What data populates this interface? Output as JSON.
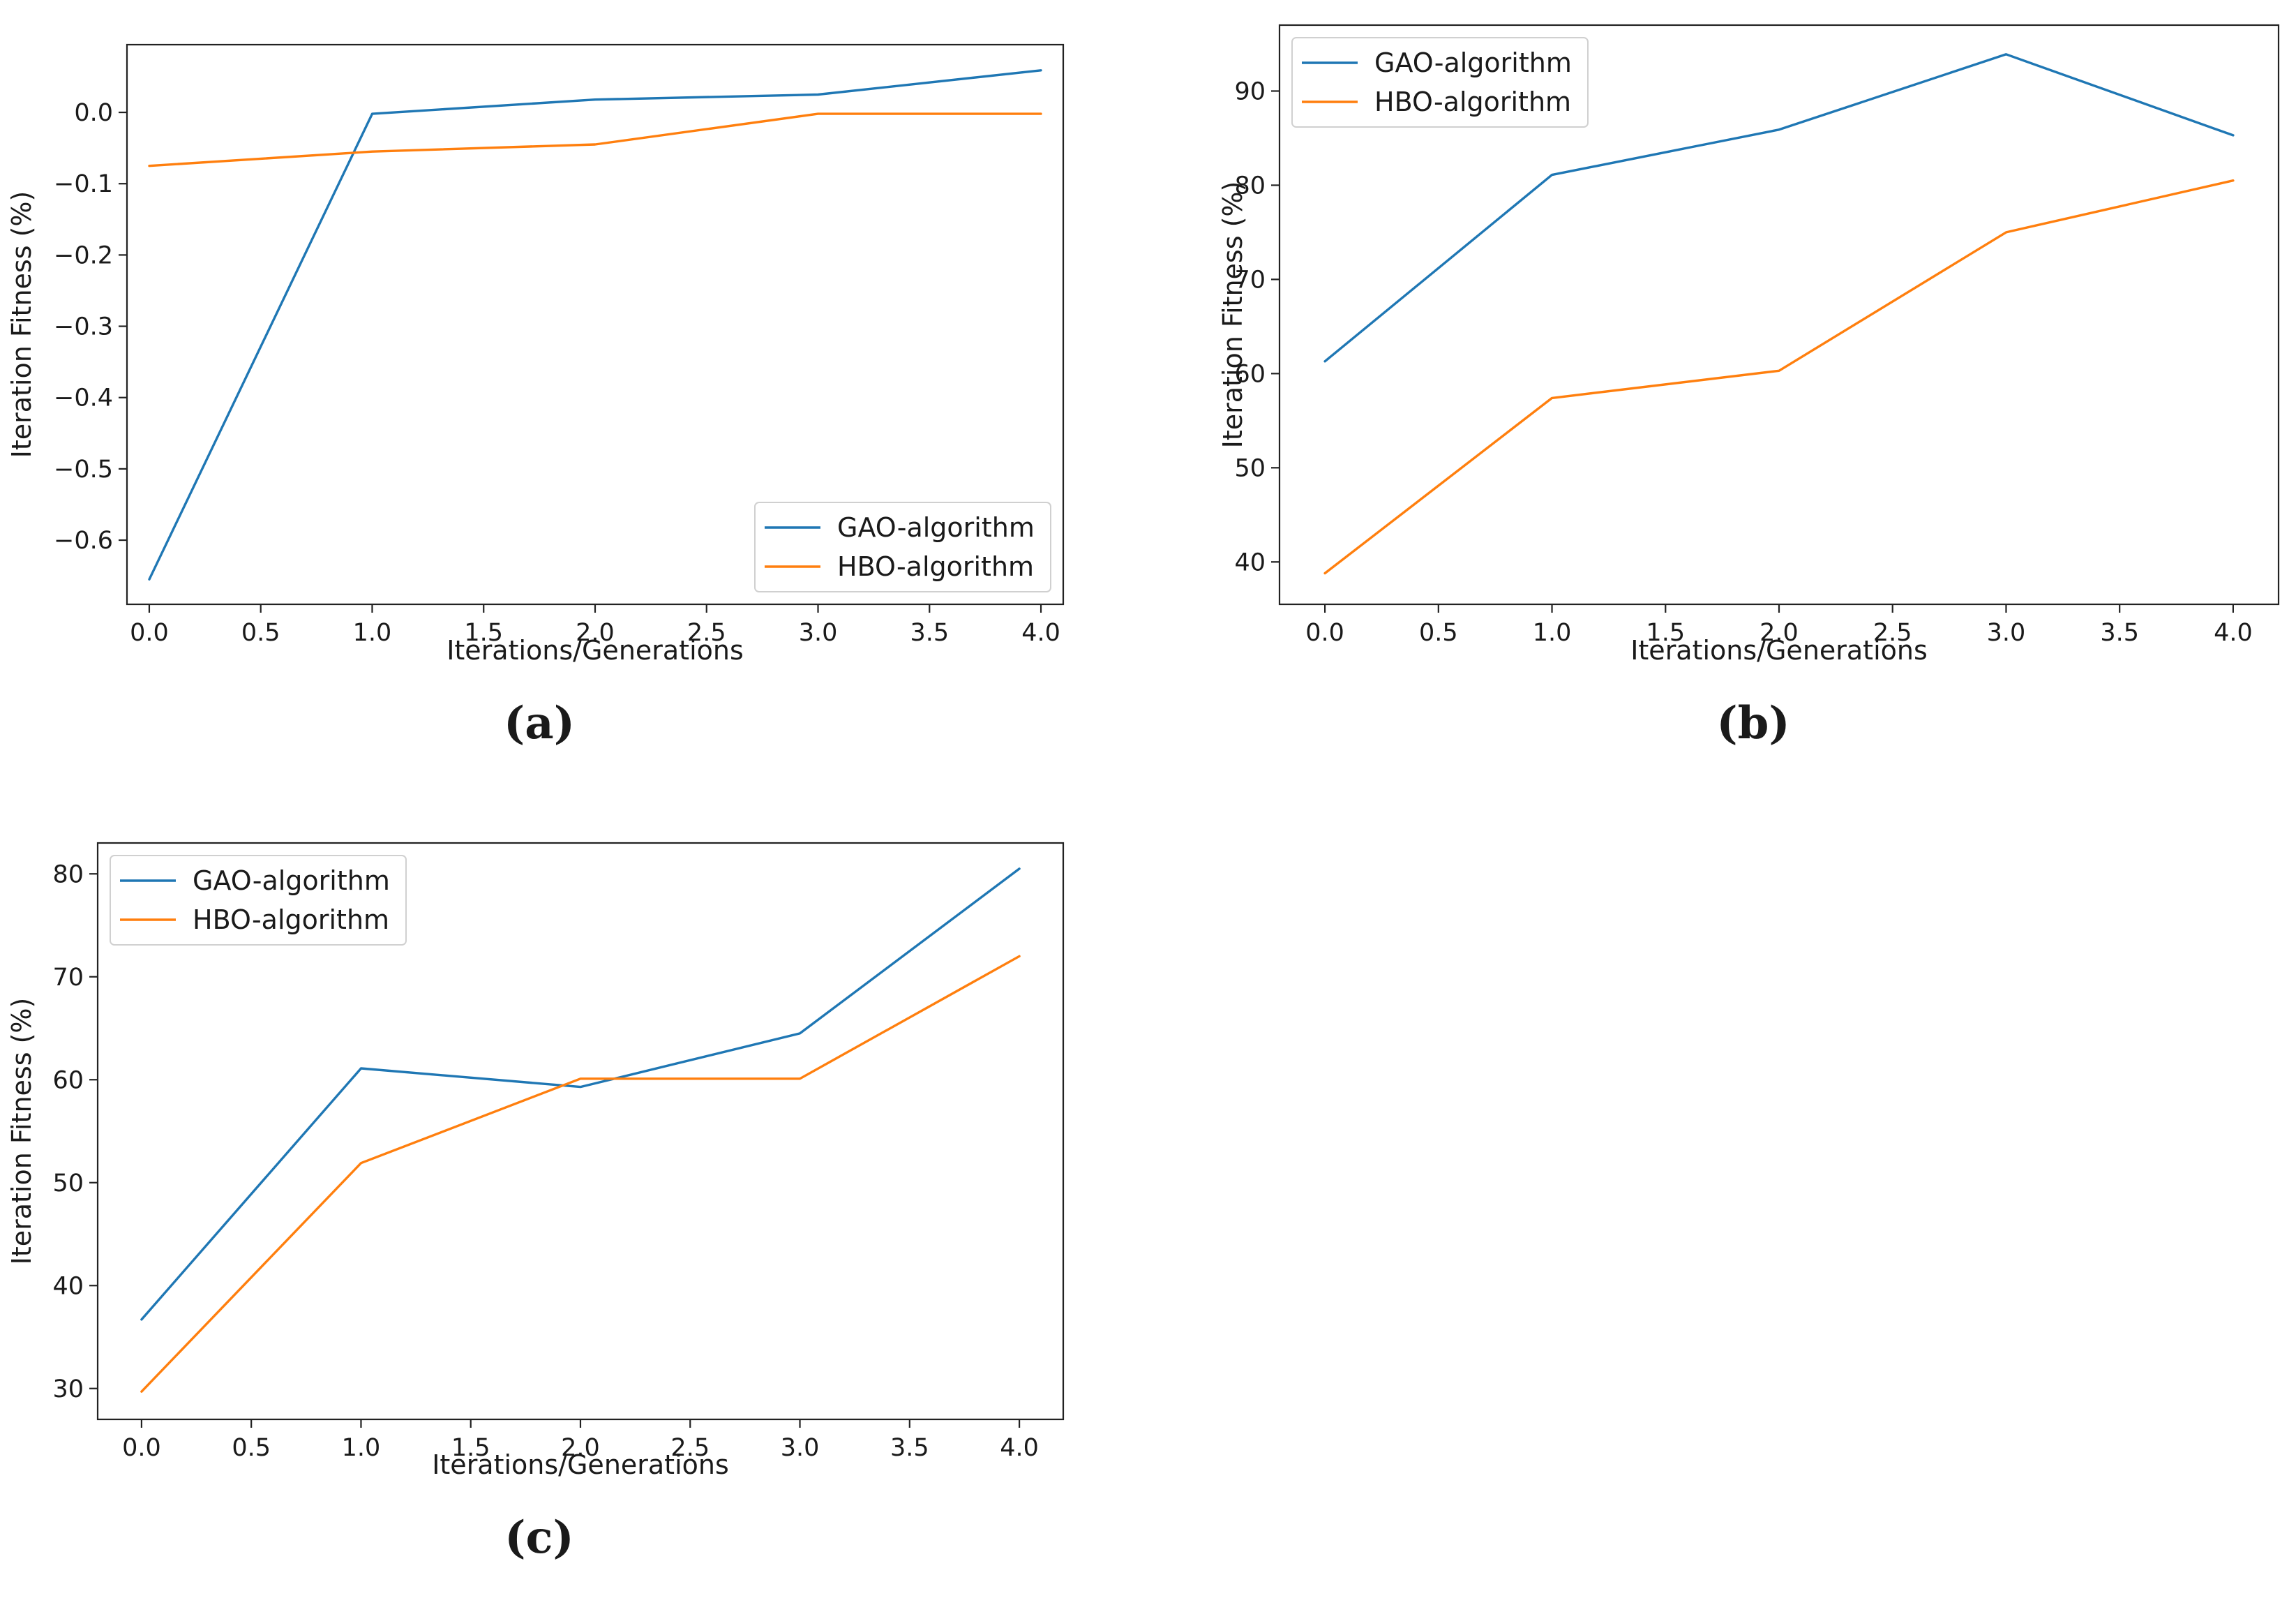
{
  "chart_data": [
    {
      "type": "line",
      "panel_label": "(a)",
      "title": "",
      "xlabel": "Iterations/Generations",
      "ylabel": "Iteration Fitness (%)",
      "x": [
        0,
        1,
        2,
        3,
        4
      ],
      "xlim": [
        -0.1,
        4.1
      ],
      "ylim": [
        -0.69,
        0.095
      ],
      "xticks": [
        0,
        0.5,
        1,
        1.5,
        2,
        2.5,
        3,
        3.5,
        4
      ],
      "xtick_labels": [
        "0.0",
        "0.5",
        "1.0",
        "1.5",
        "2.0",
        "2.5",
        "3.0",
        "3.5",
        "4.0"
      ],
      "yticks": [
        -0.6,
        -0.5,
        -0.4,
        -0.3,
        -0.2,
        -0.1,
        0.0
      ],
      "ytick_labels": [
        "−0.6",
        "−0.5",
        "−0.4",
        "−0.3",
        "−0.2",
        "−0.1",
        "0.0"
      ],
      "legend_position": "lower-right",
      "series": [
        {
          "name": "GAO-algorithm",
          "color": "#1f77b4",
          "x": [
            0,
            1,
            2,
            3,
            4
          ],
          "values": [
            -0.655,
            -0.002,
            0.018,
            0.025,
            0.059
          ]
        },
        {
          "name": "HBO-algorithm",
          "color": "#ff7f0e",
          "x": [
            0,
            1,
            2,
            3,
            4
          ],
          "values": [
            -0.075,
            -0.055,
            -0.045,
            -0.002,
            -0.002
          ]
        }
      ]
    },
    {
      "type": "line",
      "panel_label": "(b)",
      "title": "",
      "xlabel": "Iterations/Generations",
      "ylabel": "Iteration Fitness (%)",
      "x": [
        0,
        1,
        2,
        3,
        4
      ],
      "xlim": [
        -0.2,
        4.2
      ],
      "ylim": [
        35.5,
        97
      ],
      "xticks": [
        0,
        0.5,
        1,
        1.5,
        2,
        2.5,
        3,
        3.5,
        4
      ],
      "xtick_labels": [
        "0.0",
        "0.5",
        "1.0",
        "1.5",
        "2.0",
        "2.5",
        "3.0",
        "3.5",
        "4.0"
      ],
      "yticks": [
        40,
        50,
        60,
        70,
        80,
        90
      ],
      "ytick_labels": [
        "40",
        "50",
        "60",
        "70",
        "80",
        "90"
      ],
      "legend_position": "upper-left",
      "series": [
        {
          "name": "GAO-algorithm",
          "color": "#1f77b4",
          "x": [
            0,
            1,
            2,
            3,
            4
          ],
          "values": [
            61.3,
            81.1,
            85.9,
            93.9,
            85.3
          ]
        },
        {
          "name": "HBO-algorithm",
          "color": "#ff7f0e",
          "x": [
            0,
            1,
            2,
            3,
            4
          ],
          "values": [
            38.8,
            57.4,
            60.3,
            75.0,
            80.5
          ]
        }
      ]
    },
    {
      "type": "line",
      "panel_label": "(c)",
      "title": "",
      "xlabel": "Iterations/Generations",
      "ylabel": "Iteration Fitness (%)",
      "x": [
        0,
        1,
        2,
        3,
        4
      ],
      "xlim": [
        -0.2,
        4.2
      ],
      "ylim": [
        27,
        83
      ],
      "xticks": [
        0,
        0.5,
        1,
        1.5,
        2,
        2.5,
        3,
        3.5,
        4
      ],
      "xtick_labels": [
        "0.0",
        "0.5",
        "1.0",
        "1.5",
        "2.0",
        "2.5",
        "3.0",
        "3.5",
        "4.0"
      ],
      "yticks": [
        30,
        40,
        50,
        60,
        70,
        80
      ],
      "ytick_labels": [
        "30",
        "40",
        "50",
        "60",
        "70",
        "80"
      ],
      "legend_position": "upper-left",
      "series": [
        {
          "name": "GAO-algorithm",
          "color": "#1f77b4",
          "x": [
            0,
            1,
            2,
            3,
            4
          ],
          "values": [
            36.7,
            61.1,
            59.3,
            64.5,
            80.5
          ]
        },
        {
          "name": "HBO-algorithm",
          "color": "#ff7f0e",
          "x": [
            0,
            1,
            2,
            3,
            4
          ],
          "values": [
            29.7,
            51.9,
            60.1,
            60.1,
            72.0
          ]
        }
      ]
    }
  ]
}
